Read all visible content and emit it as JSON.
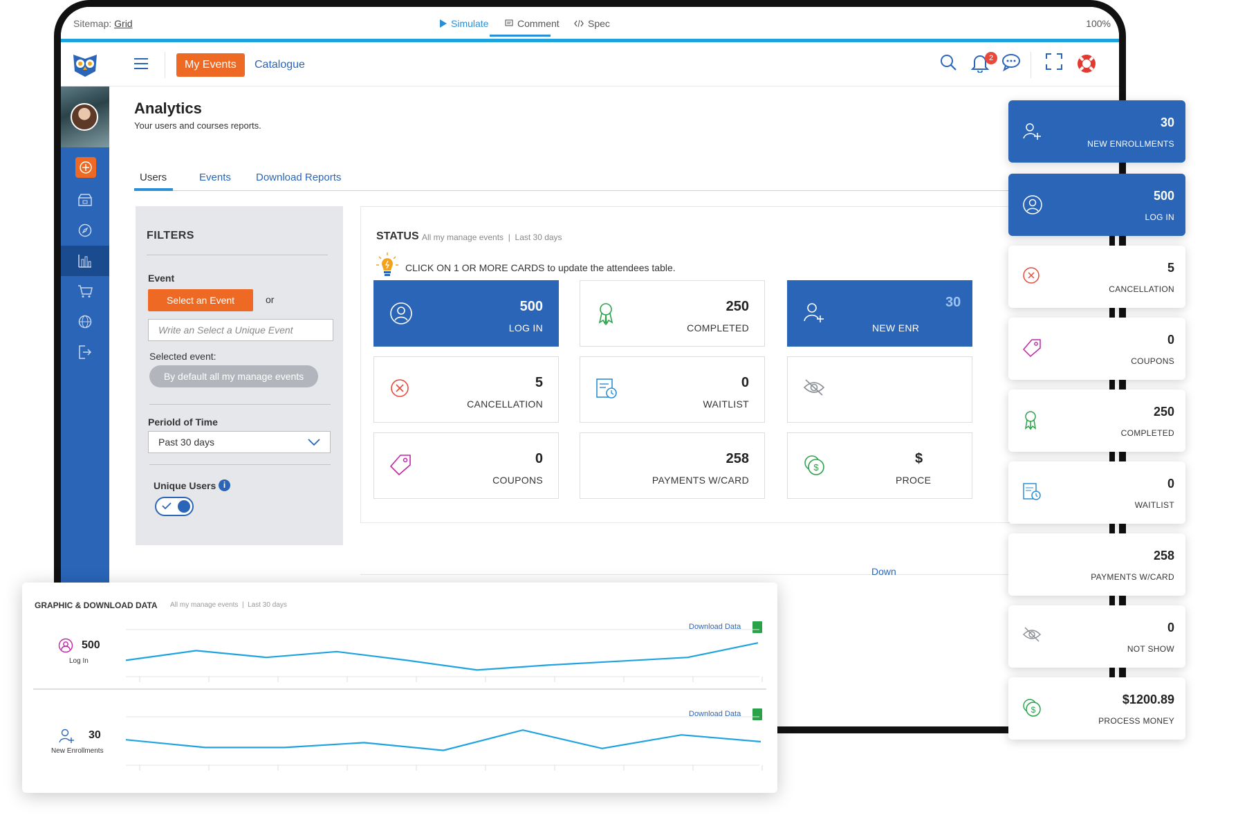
{
  "axure": {
    "sitemap_label": "Sitemap:",
    "sitemap_value": "Grid",
    "tabs": [
      {
        "label": "Simulate",
        "icon": "play-icon"
      },
      {
        "label": "Comment",
        "icon": "comment-icon"
      },
      {
        "label": "Spec",
        "icon": "code-icon"
      }
    ],
    "zoom": "100%"
  },
  "header": {
    "my_events": "My Events",
    "catalogue": "Catalogue",
    "notification_count": "2",
    "icons": [
      "search-icon",
      "bell-icon",
      "chat-icon",
      "fullscreen-icon",
      "lifebuoy-icon"
    ]
  },
  "sidebar": {
    "items": [
      "add-icon",
      "store-icon",
      "compass-icon",
      "analytics-icon",
      "cart-icon",
      "globe-icon",
      "logout-icon"
    ],
    "active": "analytics-icon"
  },
  "page": {
    "title": "Analytics",
    "subtitle": "Your users and courses reports.",
    "tabs": [
      "Users",
      "Events",
      "Download Reports"
    ]
  },
  "filters": {
    "title": "FILTERS",
    "event_label": "Event",
    "select_event": "Select an Event",
    "or": "or",
    "event_placeholder": "Write an Select a  Unique Event",
    "selected_label": "Selected event:",
    "selected_value": "By default all my manage events",
    "period_label": "Periold of Time",
    "period_value": "Past 30 days",
    "unique_label": "Unique Users",
    "unique_on": true
  },
  "status": {
    "title": "STATUS",
    "meta_scope": "All my manage events",
    "meta_range": "Last 30 days",
    "hint_bold": "CLICK ON 1",
    "hint_rest": " OR MORE CARDS to update the attendees table.",
    "cards": [
      {
        "value": "500",
        "label": "LOG IN",
        "icon": "globe-user-icon",
        "active": true
      },
      {
        "value": "250",
        "label": "COMPLETED",
        "icon": "ribbon-icon",
        "active": false
      },
      {
        "value": "30",
        "label": "NEW ENR",
        "icon": "user-plus-icon",
        "active": true
      },
      {
        "value": "5",
        "label": "CANCELLATION",
        "icon": "cancel-icon",
        "active": false
      },
      {
        "value": "0",
        "label": "WAITLIST",
        "icon": "waitlist-icon",
        "active": false
      },
      {
        "value": "",
        "label": "",
        "icon": "eye-off-icon",
        "active": false
      },
      {
        "value": "0",
        "label": "COUPONS",
        "icon": "tag-icon",
        "active": false
      },
      {
        "value": "258",
        "label": "PAYMENTS W/CARD",
        "icon": "card-icon",
        "active": false
      },
      {
        "value": "$",
        "label": "PROCE",
        "icon": "money-icon",
        "active": false
      }
    ]
  },
  "graphic": {
    "title": "GRAPHIC & DOWNLOAD DATA",
    "meta_scope": "All my manage events",
    "meta_range": "Last 30 days",
    "download_label": "Download Data",
    "bg_download_label": "Down",
    "metrics": [
      {
        "value": "500",
        "label": "Log In",
        "icon": "globe-user-icon"
      },
      {
        "value": "30",
        "label": "New Enrollments",
        "icon": "user-plus-icon"
      }
    ]
  },
  "chart_data": [
    {
      "type": "line",
      "series": [
        {
          "values": [
            14,
            24,
            17,
            23,
            14,
            4,
            9,
            13,
            17,
            32
          ]
        }
      ],
      "ylim": [
        0,
        40
      ]
    },
    {
      "type": "line",
      "series": [
        {
          "values": [
            22,
            14,
            14,
            19,
            11,
            32,
            13,
            27,
            20
          ]
        }
      ],
      "ylim": [
        0,
        40
      ]
    }
  ],
  "floating_cards": [
    {
      "value": "30",
      "label": "NEW ENROLLMENTS",
      "icon": "user-plus-icon",
      "active": true
    },
    {
      "value": "500",
      "label": "LOG IN",
      "icon": "globe-user-icon",
      "active": true
    },
    {
      "value": "5",
      "label": "CANCELLATION",
      "icon": "cancel-icon",
      "active": false
    },
    {
      "value": "0",
      "label": "COUPONS",
      "icon": "tag-icon",
      "active": false
    },
    {
      "value": "250",
      "label": "COMPLETED",
      "icon": "ribbon-icon",
      "active": false
    },
    {
      "value": "0",
      "label": "WAITLIST",
      "icon": "waitlist-icon",
      "active": false
    },
    {
      "value": "258",
      "label": "PAYMENTS W/CARD",
      "icon": "card-icon",
      "active": false
    },
    {
      "value": "0",
      "label": "NOT SHOW",
      "icon": "eye-off-icon",
      "active": false
    },
    {
      "value": "$1200.89",
      "label": "PROCESS MONEY",
      "icon": "money-icon",
      "active": false
    }
  ],
  "colors": {
    "brand_blue": "#2a65b8",
    "accent_orange": "#ee6a24",
    "chart_line": "#1ea3e1"
  }
}
